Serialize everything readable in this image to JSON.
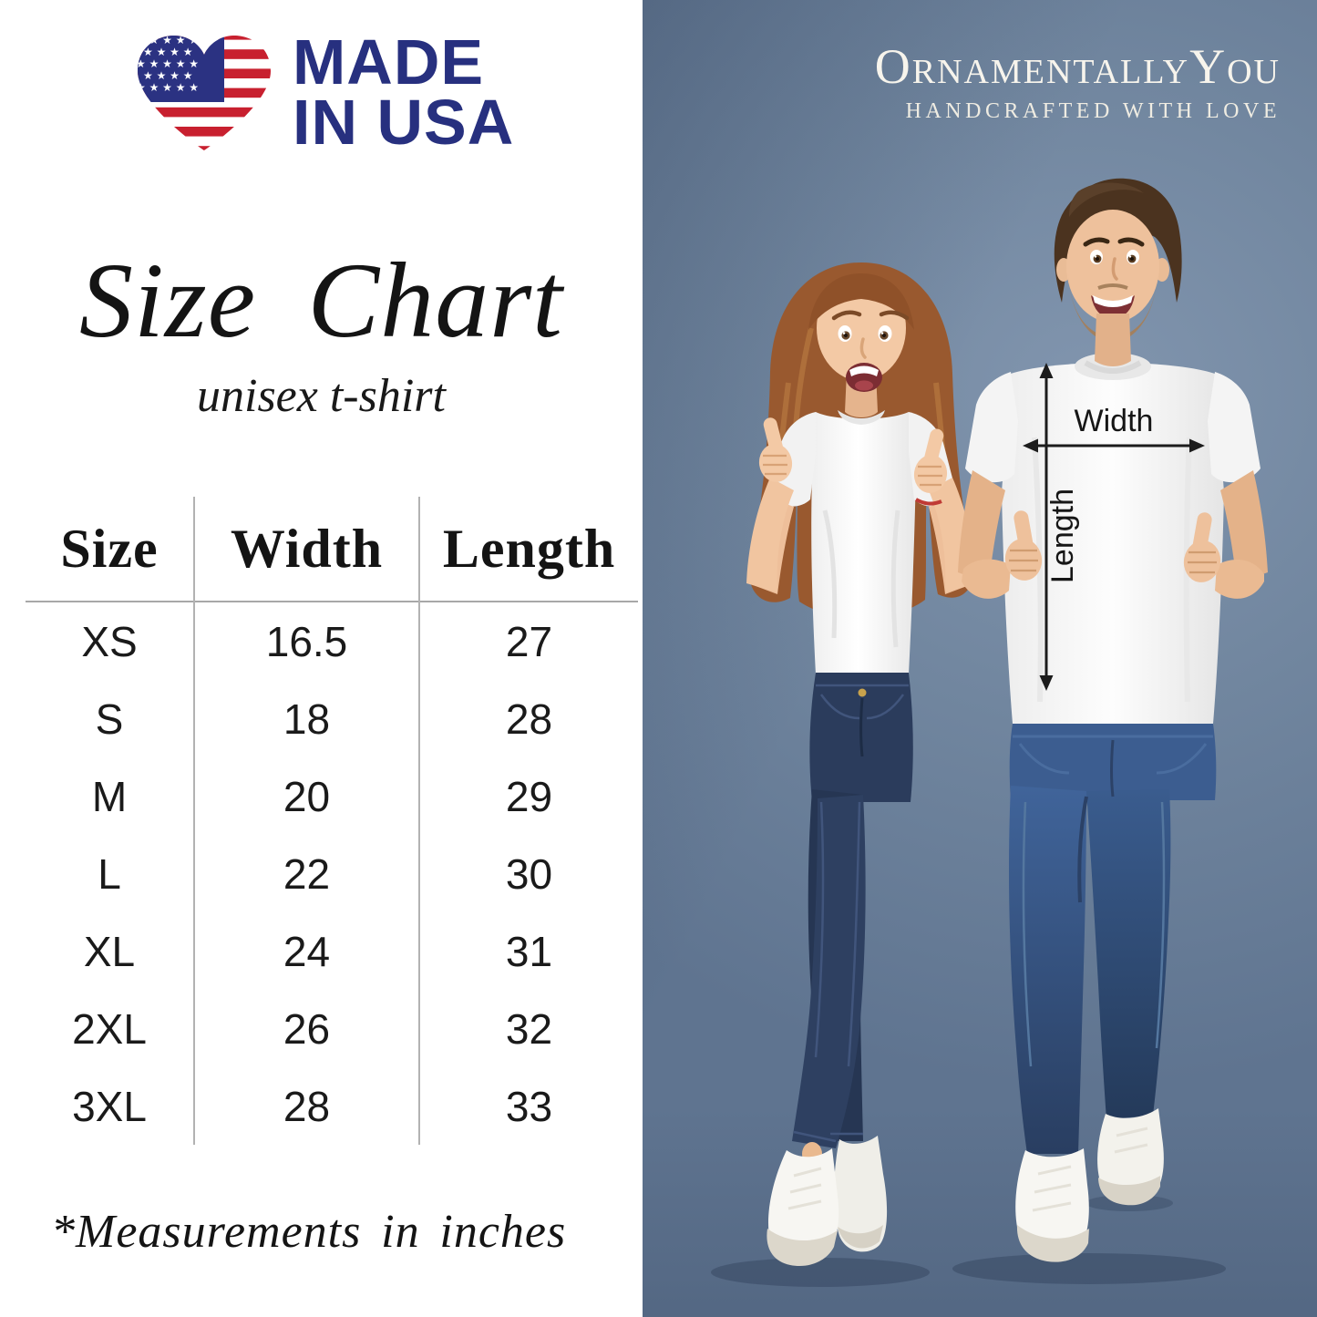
{
  "left_panel": {
    "made_in_usa": {
      "line1": "MADE",
      "line2": "IN USA"
    },
    "title": "Size Chart",
    "subtitle": "unisex t-shirt",
    "note": "*Measurements in inches"
  },
  "size_table": {
    "headers": [
      "Size",
      "Width",
      "Length"
    ],
    "rows": [
      [
        "XS",
        "16.5",
        "27"
      ],
      [
        "S",
        "18",
        "28"
      ],
      [
        "M",
        "20",
        "29"
      ],
      [
        "L",
        "22",
        "30"
      ],
      [
        "XL",
        "24",
        "31"
      ],
      [
        "2XL",
        "26",
        "32"
      ],
      [
        "3XL",
        "28",
        "33"
      ]
    ]
  },
  "photo_panel": {
    "brand_name": "OrnamentallyYou",
    "brand_tagline": "HANDCRAFTED WITH LOVE",
    "measurement_labels": {
      "width": "Width",
      "length": "Length"
    }
  },
  "colors": {
    "flag_red": "#c8202f",
    "flag_navy": "#2b3282",
    "logo_text_navy": "#27307f",
    "photo_background": "#71869f",
    "table_line_gray": "#b2b2b2"
  },
  "chart_data": {
    "type": "table",
    "title": "Size Chart",
    "subtitle": "unisex t-shirt",
    "columns": [
      "Size",
      "Width",
      "Length"
    ],
    "rows": [
      [
        "XS",
        16.5,
        27
      ],
      [
        "S",
        18,
        28
      ],
      [
        "M",
        20,
        29
      ],
      [
        "L",
        22,
        30
      ],
      [
        "XL",
        24,
        31
      ],
      [
        "2XL",
        26,
        32
      ],
      [
        "3XL",
        28,
        33
      ]
    ],
    "units": "inches",
    "footnote": "*Measurements in inches"
  }
}
